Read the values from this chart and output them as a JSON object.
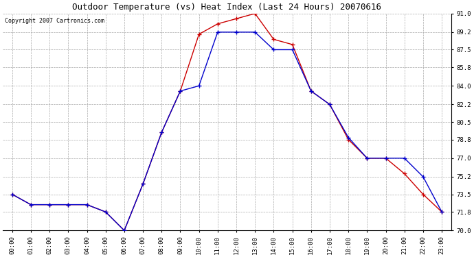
{
  "title": "Outdoor Temperature (vs) Heat Index (Last 24 Hours) 20070616",
  "copyright_text": "Copyright 2007 Cartronics.com",
  "hours": [
    "00:00",
    "01:00",
    "02:00",
    "03:00",
    "04:00",
    "05:00",
    "06:00",
    "07:00",
    "08:00",
    "09:00",
    "10:00",
    "11:00",
    "12:00",
    "13:00",
    "14:00",
    "15:00",
    "16:00",
    "17:00",
    "18:00",
    "19:00",
    "20:00",
    "21:00",
    "22:00",
    "23:00"
  ],
  "outdoor_temp": [
    73.5,
    72.5,
    72.5,
    72.5,
    72.5,
    71.8,
    70.0,
    74.5,
    79.5,
    83.5,
    89.0,
    90.0,
    90.5,
    91.0,
    88.5,
    88.0,
    83.5,
    82.2,
    78.8,
    77.0,
    77.0,
    75.5,
    73.5,
    71.8
  ],
  "heat_index": [
    73.5,
    72.5,
    72.5,
    72.5,
    72.5,
    71.8,
    70.0,
    74.5,
    79.5,
    83.5,
    84.0,
    89.2,
    89.2,
    89.2,
    87.5,
    87.5,
    83.5,
    82.2,
    79.0,
    77.0,
    77.0,
    77.0,
    75.2,
    71.8
  ],
  "temp_color": "#cc0000",
  "heat_index_color": "#0000cc",
  "marker": "+",
  "marker_size": 4,
  "linewidth": 1.0,
  "ylim_min": 70.0,
  "ylim_max": 91.0,
  "yticks": [
    70.0,
    71.8,
    73.5,
    75.2,
    77.0,
    78.8,
    80.5,
    82.2,
    84.0,
    85.8,
    87.5,
    89.2,
    91.0
  ],
  "bg_color": "#ffffff",
  "grid_color": "#aaaaaa",
  "title_fontsize": 9,
  "tick_fontsize": 6.5,
  "copyright_fontsize": 6
}
